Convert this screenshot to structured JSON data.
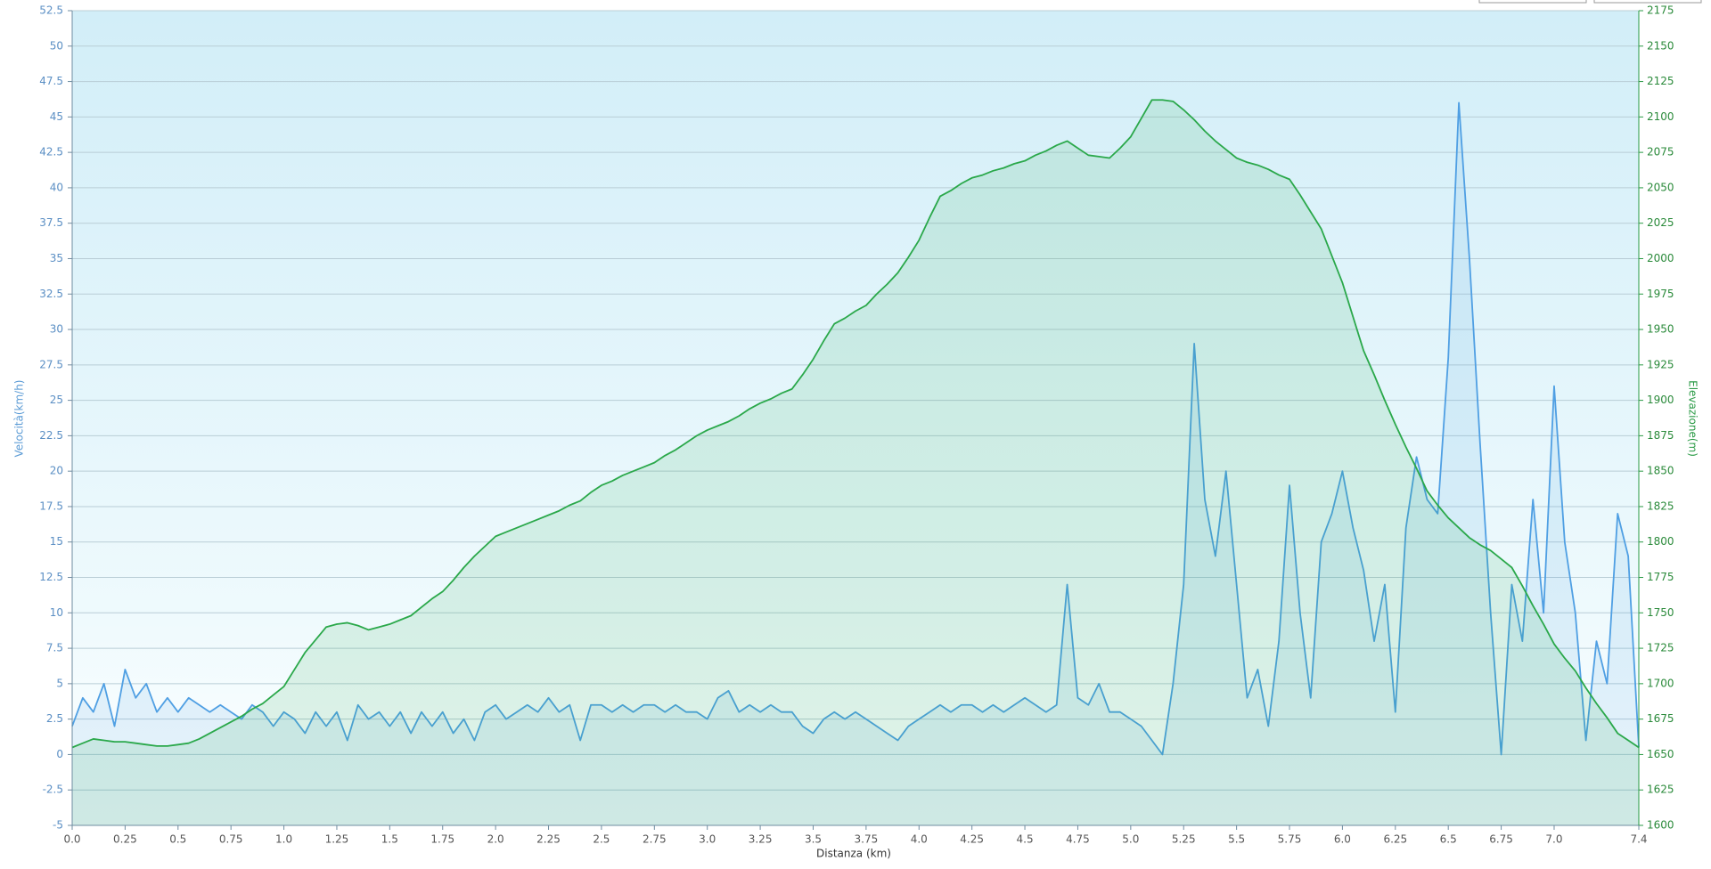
{
  "chart_data": {
    "type": "line",
    "x_label": "Distanza  (km)",
    "y_label": "Velocità(km/h)",
    "y2_label": "Elevazione(m)",
    "x": [
      0,
      0.05,
      0.1,
      0.15,
      0.2,
      0.25,
      0.3,
      0.35,
      0.4,
      0.45,
      0.5,
      0.55,
      0.6,
      0.65,
      0.7,
      0.75,
      0.8,
      0.85,
      0.9,
      0.95,
      1,
      1.05,
      1.1,
      1.15,
      1.2,
      1.25,
      1.3,
      1.35,
      1.4,
      1.45,
      1.5,
      1.55,
      1.6,
      1.65,
      1.7,
      1.75,
      1.8,
      1.85,
      1.9,
      1.95,
      2,
      2.05,
      2.1,
      2.15,
      2.2,
      2.25,
      2.3,
      2.35,
      2.4,
      2.45,
      2.5,
      2.55,
      2.6,
      2.65,
      2.7,
      2.75,
      2.8,
      2.85,
      2.9,
      2.95,
      3,
      3.05,
      3.1,
      3.15,
      3.2,
      3.25,
      3.3,
      3.35,
      3.4,
      3.45,
      3.5,
      3.55,
      3.6,
      3.65,
      3.7,
      3.75,
      3.8,
      3.85,
      3.9,
      3.95,
      4,
      4.05,
      4.1,
      4.15,
      4.2,
      4.25,
      4.3,
      4.35,
      4.4,
      4.45,
      4.5,
      4.55,
      4.6,
      4.65,
      4.7,
      4.75,
      4.8,
      4.85,
      4.9,
      4.95,
      5,
      5.05,
      5.1,
      5.15,
      5.2,
      5.25,
      5.3,
      5.35,
      5.4,
      5.45,
      5.5,
      5.55,
      5.6,
      5.65,
      5.7,
      5.75,
      5.8,
      5.85,
      5.9,
      5.95,
      6,
      6.05,
      6.1,
      6.15,
      6.2,
      6.25,
      6.3,
      6.35,
      6.4,
      6.45,
      6.5,
      6.55,
      6.6,
      6.65,
      6.7,
      6.75,
      6.8,
      6.85,
      6.9,
      6.95,
      7,
      7.05,
      7.1,
      7.15,
      7.2,
      7.25,
      7.3,
      7.35,
      7.4
    ],
    "series": [
      {
        "name": "Velocità",
        "color": "#4f9fe3",
        "axis": "y",
        "values": [
          2,
          4,
          3,
          5,
          2,
          6,
          4,
          5,
          3,
          4,
          3,
          4,
          3.5,
          3,
          3.5,
          3,
          2.5,
          3.5,
          3,
          2,
          3,
          2.5,
          1.5,
          3,
          2,
          3,
          1,
          3.5,
          2.5,
          3,
          2,
          3,
          1.5,
          3,
          2,
          3,
          1.5,
          2.5,
          1,
          3,
          3.5,
          2.5,
          3,
          3.5,
          3,
          4,
          3,
          3.5,
          1,
          3.5,
          3.5,
          3,
          3.5,
          3,
          3.5,
          3.5,
          3,
          3.5,
          3,
          3,
          2.5,
          4,
          4.5,
          3,
          3.5,
          3,
          3.5,
          3,
          3,
          2,
          1.5,
          2.5,
          3,
          2.5,
          3,
          2.5,
          2,
          1.5,
          1,
          2,
          2.5,
          3,
          3.5,
          3,
          3.5,
          3.5,
          3,
          3.5,
          3,
          3.5,
          4,
          3.5,
          3,
          3.5,
          12,
          4,
          3.5,
          5,
          3,
          3,
          2.5,
          2,
          1,
          0,
          5,
          12,
          29,
          18,
          14,
          20,
          12,
          4,
          6,
          2,
          8,
          19,
          10,
          4,
          15,
          17,
          20,
          16,
          13,
          8,
          12,
          3,
          16,
          21,
          18,
          17,
          28,
          46,
          35,
          22,
          10,
          0,
          12,
          8,
          18,
          10,
          26,
          15,
          10,
          1,
          8,
          5,
          17,
          14,
          0.5
        ]
      },
      {
        "name": "Elevazione",
        "color": "#2aa84a",
        "axis": "y2",
        "values": [
          1655,
          1658,
          1661,
          1660,
          1659,
          1659,
          1658,
          1657,
          1656,
          1656,
          1657,
          1658,
          1661,
          1665,
          1669,
          1673,
          1677,
          1682,
          1686,
          1692,
          1698,
          1710,
          1722,
          1731,
          1740,
          1742,
          1743,
          1741,
          1738,
          1740,
          1742,
          1745,
          1748,
          1754,
          1760,
          1765,
          1773,
          1782,
          1790,
          1797,
          1804,
          1807,
          1810,
          1813,
          1816,
          1819,
          1822,
          1826,
          1829,
          1835,
          1840,
          1843,
          1847,
          1850,
          1853,
          1856,
          1861,
          1865,
          1870,
          1875,
          1879,
          1882,
          1885,
          1889,
          1894,
          1898,
          1901,
          1905,
          1908,
          1918,
          1929,
          1942,
          1954,
          1958,
          1963,
          1967,
          1975,
          1982,
          1990,
          2001,
          2013,
          2029,
          2044,
          2048,
          2053,
          2057,
          2059,
          2062,
          2064,
          2067,
          2069,
          2073,
          2076,
          2080,
          2083,
          2078,
          2073,
          2072,
          2071,
          2078,
          2086,
          2099,
          2112,
          2112,
          2111,
          2105,
          2098,
          2090,
          2083,
          2077,
          2071,
          2068,
          2066,
          2063,
          2059,
          2056,
          2045,
          2033,
          2021,
          2002,
          1983,
          1959,
          1935,
          1918,
          1900,
          1883,
          1867,
          1852,
          1836,
          1826,
          1817,
          1810,
          1803,
          1798,
          1794,
          1788,
          1782,
          1769,
          1755,
          1742,
          1728,
          1718,
          1709,
          1697,
          1686,
          1676,
          1665,
          1660,
          1655
        ]
      }
    ],
    "xlim": [
      0,
      7.4
    ],
    "xticks": [
      {
        "value": 0,
        "label": "0.0"
      },
      0.25,
      0.5,
      0.75,
      {
        "value": 1,
        "label": "1.0"
      },
      1.25,
      1.5,
      1.75,
      {
        "value": 2,
        "label": "2.0"
      },
      2.25,
      2.5,
      2.75,
      {
        "value": 3,
        "label": "3.0"
      },
      3.25,
      3.5,
      3.75,
      {
        "value": 4,
        "label": "4.0"
      },
      4.25,
      4.5,
      4.75,
      {
        "value": 5,
        "label": "5.0"
      },
      5.25,
      5.5,
      5.75,
      {
        "value": 6,
        "label": "6.0"
      },
      6.25,
      6.5,
      6.75,
      {
        "value": 7,
        "label": "7.0"
      },
      7.4
    ],
    "ylim": [
      -5,
      52.5
    ],
    "yticks": [
      -5,
      -2.5,
      0,
      2.5,
      5,
      7.5,
      10,
      12.5,
      15,
      17.5,
      20,
      22.5,
      25,
      27.5,
      30,
      32.5,
      35,
      37.5,
      40,
      42.5,
      45,
      47.5,
      50,
      52.5
    ],
    "y2lim": [
      1600,
      2175
    ],
    "y2ticks": [
      1600,
      1625,
      1650,
      1675,
      1700,
      1725,
      1750,
      1775,
      1800,
      1825,
      1850,
      1875,
      1900,
      1925,
      1950,
      1975,
      2000,
      2025,
      2050,
      2075,
      2100,
      2125,
      2150,
      2175
    ],
    "grid": true
  }
}
